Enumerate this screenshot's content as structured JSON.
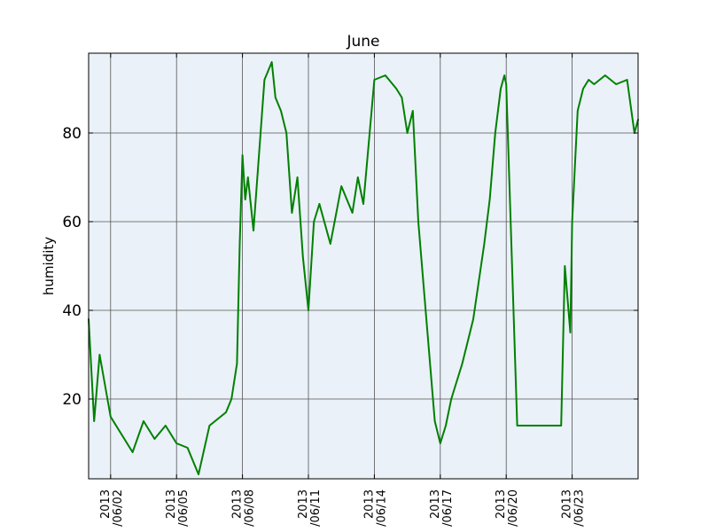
{
  "chart_data": {
    "type": "line",
    "title": "June",
    "xlabel": "",
    "ylabel": "humidity",
    "x_ticks": [
      "2013\n/06/02",
      "2013\n/06/05",
      "2013\n/06/08",
      "2013\n/06/11",
      "2013\n/06/14",
      "2013\n/06/17",
      "2013\n/06/20",
      "2013\n/06/23"
    ],
    "y_ticks": [
      20,
      40,
      60,
      80
    ],
    "xlim": [
      "2013-06-01",
      "2013-06-26"
    ],
    "ylim": [
      2,
      98
    ],
    "grid": true,
    "colors": {
      "plot_bg": "#eaf1f8",
      "line": "#008000",
      "grid": "#555555",
      "axes": "#000000"
    },
    "series": [
      {
        "color": "#008000",
        "x": [
          "2013-06-01 00:00",
          "2013-06-01 06:00",
          "2013-06-01 12:00",
          "2013-06-02 00:00",
          "2013-06-02 12:00",
          "2013-06-03 00:00",
          "2013-06-03 12:00",
          "2013-06-04 00:00",
          "2013-06-04 12:00",
          "2013-06-05 00:00",
          "2013-06-05 12:00",
          "2013-06-06 00:00",
          "2013-06-06 12:00",
          "2013-06-07 00:00",
          "2013-06-07 06:00",
          "2013-06-07 12:00",
          "2013-06-07 18:00",
          "2013-06-07 21:00",
          "2013-06-08 00:00",
          "2013-06-08 03:00",
          "2013-06-08 06:00",
          "2013-06-08 12:00",
          "2013-06-09 00:00",
          "2013-06-09 08:00",
          "2013-06-09 12:00",
          "2013-06-09 18:00",
          "2013-06-10 00:00",
          "2013-06-10 06:00",
          "2013-06-10 12:00",
          "2013-06-10 18:00",
          "2013-06-11 00:00",
          "2013-06-11 06:00",
          "2013-06-11 12:00",
          "2013-06-12 00:00",
          "2013-06-12 12:00",
          "2013-06-13 00:00",
          "2013-06-13 06:00",
          "2013-06-13 12:00",
          "2013-06-14 00:00",
          "2013-06-14 12:00",
          "2013-06-15 00:00",
          "2013-06-15 06:00",
          "2013-06-15 12:00",
          "2013-06-15 18:00",
          "2013-06-16 00:00",
          "2013-06-16 06:00",
          "2013-06-16 12:00",
          "2013-06-16 18:00",
          "2013-06-17 00:00",
          "2013-06-17 06:00",
          "2013-06-17 12:00",
          "2013-06-18 00:00",
          "2013-06-18 12:00",
          "2013-06-19 00:00",
          "2013-06-19 06:00",
          "2013-06-19 12:00",
          "2013-06-19 18:00",
          "2013-06-19 22:00",
          "2013-06-20 00:00",
          "2013-06-20 12:00",
          "2013-06-21 00:00",
          "2013-06-21 12:00",
          "2013-06-22 00:00",
          "2013-06-22 12:00",
          "2013-06-22 16:00",
          "2013-06-22 22:00",
          "2013-06-23 00:00",
          "2013-06-23 06:00",
          "2013-06-23 12:00",
          "2013-06-23 18:00",
          "2013-06-24 00:00",
          "2013-06-24 12:00",
          "2013-06-25 00:00",
          "2013-06-25 12:00",
          "2013-06-25 20:00",
          "2013-06-26 00:00"
        ],
        "y": [
          38,
          15,
          30,
          16,
          12,
          8,
          15,
          11,
          14,
          10,
          9,
          3,
          14,
          16,
          17,
          20,
          28,
          55,
          75,
          65,
          70,
          58,
          92,
          96,
          88,
          85,
          80,
          62,
          70,
          52,
          40,
          60,
          64,
          55,
          68,
          62,
          70,
          64,
          92,
          93,
          90,
          88,
          80,
          85,
          60,
          45,
          30,
          15,
          10,
          14,
          20,
          28,
          38,
          55,
          65,
          80,
          90,
          93,
          91,
          14,
          14,
          14,
          14,
          14,
          50,
          35,
          60,
          85,
          90,
          92,
          91,
          93,
          91,
          92,
          80,
          83
        ]
      }
    ]
  }
}
